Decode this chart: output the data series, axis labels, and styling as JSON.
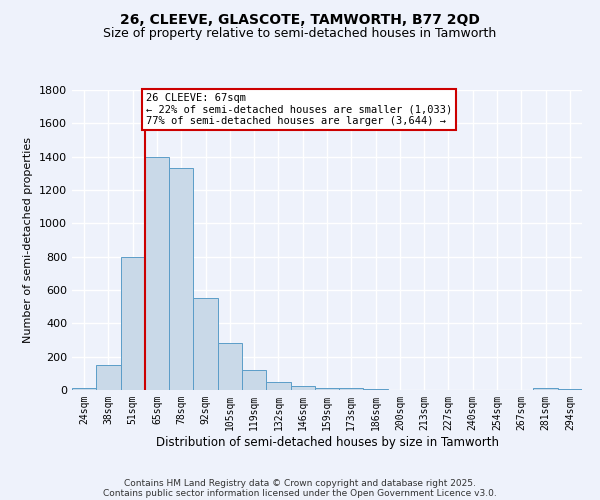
{
  "title1": "26, CLEEVE, GLASCOTE, TAMWORTH, B77 2QD",
  "title2": "Size of property relative to semi-detached houses in Tamworth",
  "xlabel": "Distribution of semi-detached houses by size in Tamworth",
  "ylabel": "Number of semi-detached properties",
  "property_label": "26 CLEEVE: 67sqm",
  "pct_smaller": 22,
  "pct_larger": 77,
  "n_smaller": "1,033",
  "n_larger": "3,644",
  "categories": [
    "24sqm",
    "38sqm",
    "51sqm",
    "65sqm",
    "78sqm",
    "92sqm",
    "105sqm",
    "119sqm",
    "132sqm",
    "146sqm",
    "159sqm",
    "173sqm",
    "186sqm",
    "200sqm",
    "213sqm",
    "227sqm",
    "240sqm",
    "254sqm",
    "267sqm",
    "281sqm",
    "294sqm"
  ],
  "values": [
    15,
    150,
    800,
    1400,
    1330,
    550,
    285,
    120,
    50,
    25,
    15,
    10,
    5,
    0,
    0,
    0,
    0,
    0,
    0,
    10,
    5
  ],
  "bar_color": "#c9d9e8",
  "bar_edge_color": "#5b9dc8",
  "vline_color": "#cc0000",
  "vline_index": 3,
  "annotation_box_color": "#cc0000",
  "background_color": "#eef2fb",
  "ylim": [
    0,
    1800
  ],
  "yticks": [
    0,
    200,
    400,
    600,
    800,
    1000,
    1200,
    1400,
    1600,
    1800
  ],
  "footer_line1": "Contains HM Land Registry data © Crown copyright and database right 2025.",
  "footer_line2": "Contains public sector information licensed under the Open Government Licence v3.0.",
  "title_fontsize": 10,
  "subtitle_fontsize": 9
}
